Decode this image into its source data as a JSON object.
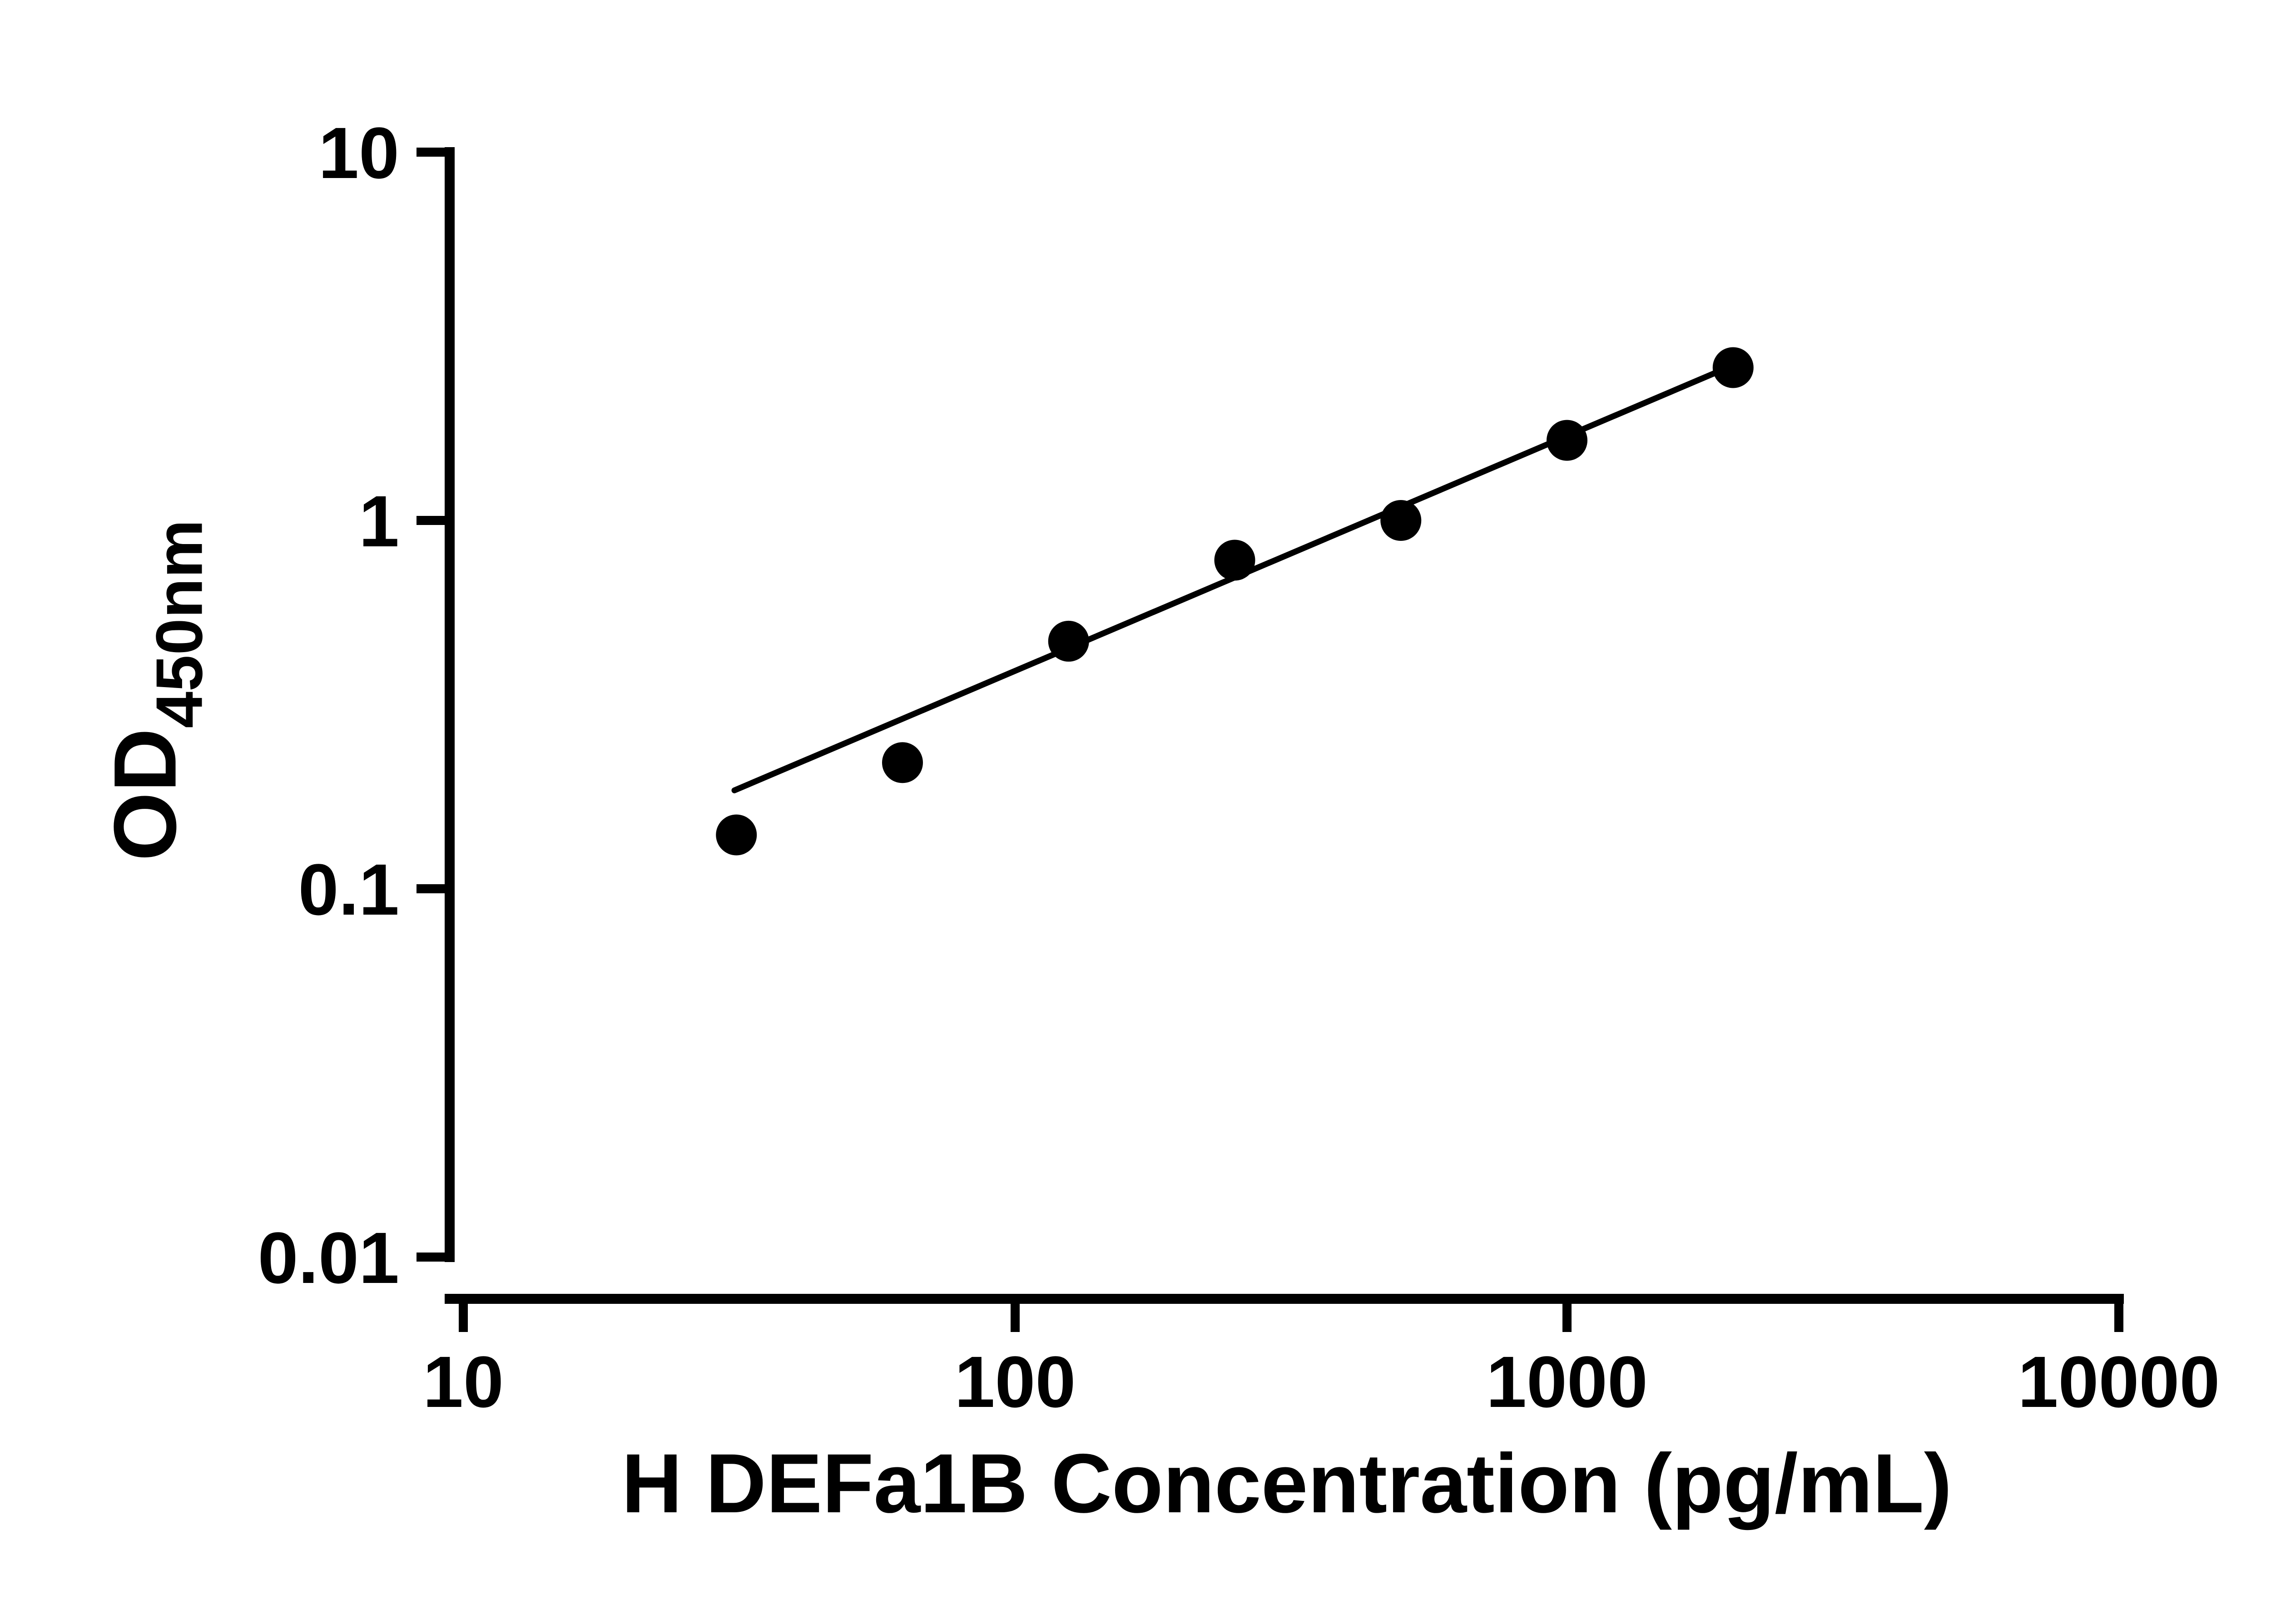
{
  "figure": {
    "background": "#ffffff"
  },
  "chart_data": {
    "type": "scatter",
    "title": "",
    "xlabel": "H DEFa1B Concentration (pg/mL)",
    "ylabel": "OD",
    "ylabel_sub": "450nm",
    "x_scale": "log10",
    "y_scale": "log10",
    "xlim": [
      10,
      10000
    ],
    "ylim": [
      0.01,
      10
    ],
    "x_ticks": [
      10,
      100,
      1000,
      10000
    ],
    "x_tick_labels": [
      "10",
      "100",
      "1000",
      "10000"
    ],
    "y_ticks": [
      0.01,
      0.1,
      1,
      10
    ],
    "y_tick_labels": [
      "0.01",
      "0.1",
      "1",
      "10"
    ],
    "grid": false,
    "legend": "none",
    "points": {
      "x": [
        31.25,
        62.5,
        125,
        250,
        500,
        1000,
        2000
      ],
      "y": [
        0.14,
        0.22,
        0.47,
        0.78,
        1.0,
        1.65,
        2.6
      ]
    },
    "trendline": {
      "type": "linear-loglog",
      "x1": 31,
      "y1": 0.185,
      "x2": 2050,
      "y2": 2.68
    },
    "marker_color": "#000000",
    "line_color": "#000000",
    "axis_color": "#000000"
  }
}
